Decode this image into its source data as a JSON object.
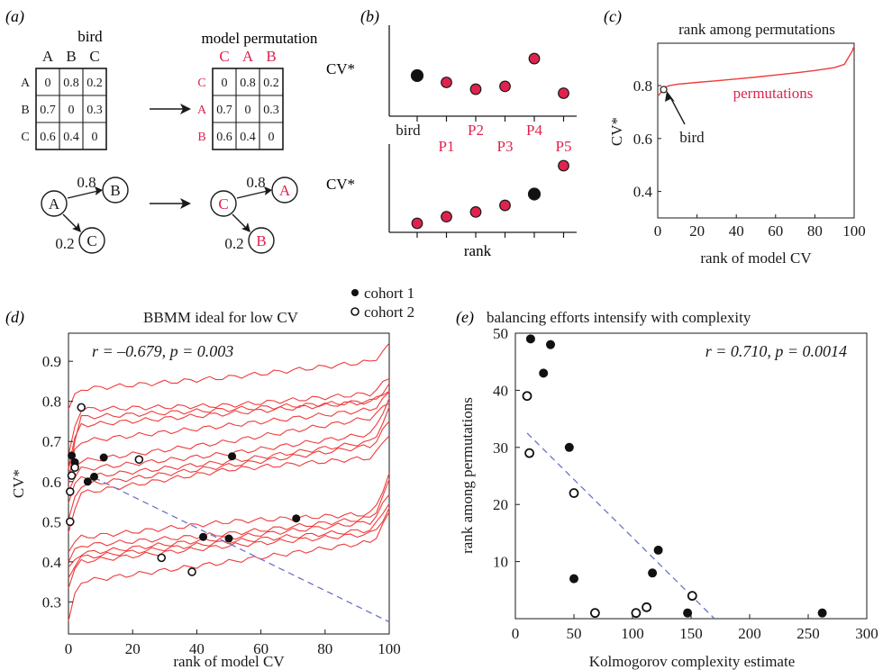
{
  "colors": {
    "red": "#e0234e",
    "curve": "#ef3b3b",
    "ink": "#1a1a1a",
    "fit": "#6b74c8",
    "marker": "#111111"
  },
  "panel_a": {
    "label": "(a)",
    "bird_title": "bird",
    "perm_title": "model permutation",
    "bird_cols": [
      "A",
      "B",
      "C"
    ],
    "bird_rows": [
      "A",
      "B",
      "C"
    ],
    "perm_cols": [
      "C",
      "A",
      "B"
    ],
    "perm_rows": [
      "C",
      "A",
      "B"
    ],
    "matrix": [
      [
        "0",
        "0.8",
        "0.2"
      ],
      [
        "0.7",
        "0",
        "0.3"
      ],
      [
        "0.6",
        "0.4",
        "0"
      ]
    ],
    "graph_left": {
      "nodes": [
        "A",
        "B",
        "C"
      ],
      "edge_top": "0.8",
      "edge_bottom": "0.2"
    },
    "graph_right": {
      "nodes": [
        "C",
        "A",
        "B"
      ],
      "edge_top": "0.8",
      "edge_bottom": "0.2"
    }
  },
  "panel_b": {
    "label": "(b)",
    "ylabel": "CV*",
    "xlabel": "rank",
    "labels_top": [
      "bird",
      "P1",
      "P2",
      "P3",
      "P4",
      "P5"
    ]
  },
  "chart_data": [
    {
      "id": "panel-b-top",
      "type": "scatter",
      "x": [
        "bird",
        "P1",
        "P2",
        "P3",
        "P4",
        "P5"
      ],
      "values": [
        0.62,
        0.5,
        0.38,
        0.43,
        0.92,
        0.31
      ],
      "highlight_index": 0,
      "xlabel": "",
      "ylabel": "CV*"
    },
    {
      "id": "panel-b-bottom",
      "type": "scatter",
      "x": [
        1,
        2,
        3,
        4,
        5,
        6
      ],
      "values": [
        0.31,
        0.38,
        0.43,
        0.5,
        0.62,
        0.92
      ],
      "highlight_index": 4,
      "xlabel": "rank",
      "ylabel": "CV*"
    },
    {
      "id": "panel-c",
      "type": "line",
      "title": "rank among permutations",
      "xlabel": "rank of model CV",
      "ylabel": "CV*",
      "xlim": [
        0,
        100
      ],
      "ylim": [
        0.3,
        0.96
      ],
      "xticks": [
        "0",
        "20",
        "40",
        "60",
        "80",
        "100"
      ],
      "yticks": [
        "0.4",
        "0.6",
        "0.8"
      ],
      "series": [
        {
          "name": "permutations",
          "x": [
            0,
            4,
            6,
            10,
            20,
            30,
            40,
            50,
            60,
            70,
            80,
            90,
            95,
            97,
            99,
            100
          ],
          "y": [
            0.76,
            0.795,
            0.8,
            0.805,
            0.812,
            0.818,
            0.825,
            0.832,
            0.84,
            0.848,
            0.857,
            0.868,
            0.88,
            0.905,
            0.93,
            0.95
          ]
        }
      ],
      "bird_point": {
        "x": 3,
        "y": 0.785
      },
      "annotations": [
        "permutations",
        "bird"
      ]
    },
    {
      "id": "panel-d",
      "type": "line",
      "title": "BBMM ideal for low CV",
      "stat": "r = –0.679, p = 0.003",
      "xlabel": "rank of model CV",
      "ylabel": "CV*",
      "xlim": [
        0,
        100
      ],
      "ylim": [
        0.22,
        0.97
      ],
      "xticks": [
        "0",
        "20",
        "40",
        "60",
        "80",
        "100"
      ],
      "yticks": [
        "0.3",
        "0.4",
        "0.5",
        "0.6",
        "0.7",
        "0.8",
        "0.9"
      ],
      "legend": [
        "cohort 1",
        "cohort 2"
      ],
      "curves": [
        [
          0.78,
          0.83,
          0.86,
          0.9,
          0.94
        ],
        [
          0.66,
          0.78,
          0.79,
          0.82,
          0.86
        ],
        [
          0.6,
          0.76,
          0.78,
          0.8,
          0.83
        ],
        [
          0.64,
          0.74,
          0.77,
          0.8,
          0.84
        ],
        [
          0.63,
          0.7,
          0.74,
          0.78,
          0.82
        ],
        [
          0.62,
          0.65,
          0.7,
          0.76,
          0.8
        ],
        [
          0.58,
          0.63,
          0.67,
          0.72,
          0.81
        ],
        [
          0.55,
          0.61,
          0.65,
          0.7,
          0.78
        ],
        [
          0.5,
          0.59,
          0.64,
          0.69,
          0.75
        ],
        [
          0.47,
          0.57,
          0.63,
          0.66,
          0.72
        ],
        [
          0.43,
          0.46,
          0.5,
          0.52,
          0.62
        ],
        [
          0.4,
          0.44,
          0.47,
          0.51,
          0.6
        ],
        [
          0.38,
          0.42,
          0.46,
          0.5,
          0.57
        ],
        [
          0.36,
          0.41,
          0.45,
          0.48,
          0.55
        ],
        [
          0.34,
          0.4,
          0.44,
          0.47,
          0.53
        ],
        [
          0.25,
          0.35,
          0.4,
          0.45,
          0.52
        ]
      ],
      "cohort1": [
        [
          1,
          0.665
        ],
        [
          2,
          0.648
        ],
        [
          6,
          0.6
        ],
        [
          8,
          0.612
        ],
        [
          11,
          0.66
        ],
        [
          42,
          0.462
        ],
        [
          50,
          0.458
        ],
        [
          51,
          0.663
        ],
        [
          71,
          0.508
        ]
      ],
      "cohort2": [
        [
          0.5,
          0.5
        ],
        [
          0.5,
          0.575
        ],
        [
          1,
          0.615
        ],
        [
          2,
          0.635
        ],
        [
          4,
          0.785
        ],
        [
          22,
          0.655
        ],
        [
          29,
          0.41
        ],
        [
          38.5,
          0.375
        ]
      ],
      "fit": {
        "x": [
          8,
          100
        ],
        "y": [
          0.61,
          0.25
        ]
      }
    },
    {
      "id": "panel-e",
      "type": "scatter",
      "title": "balancing efforts intensify with complexity",
      "stat": "r = 0.710, p = 0.0014",
      "xlabel": "Kolmogorov complexity estimate",
      "ylabel": "rank among permutations",
      "xlim": [
        0,
        300
      ],
      "ylim": [
        0,
        50
      ],
      "xticks": [
        "0",
        "50",
        "100",
        "150",
        "200",
        "250",
        "300"
      ],
      "yticks": [
        "10",
        "20",
        "30",
        "40",
        "50"
      ],
      "cohort1": [
        [
          13,
          49
        ],
        [
          24,
          43
        ],
        [
          30,
          48
        ],
        [
          46,
          30
        ],
        [
          50,
          7
        ],
        [
          117,
          8
        ],
        [
          122,
          12
        ],
        [
          147,
          1
        ],
        [
          262,
          1
        ]
      ],
      "cohort2": [
        [
          10,
          39
        ],
        [
          12,
          29
        ],
        [
          50,
          22
        ],
        [
          68,
          1
        ],
        [
          103,
          1
        ],
        [
          112,
          2
        ],
        [
          151,
          4
        ]
      ],
      "fit": {
        "x": [
          10,
          170
        ],
        "y": [
          32.5,
          0
        ]
      }
    }
  ]
}
